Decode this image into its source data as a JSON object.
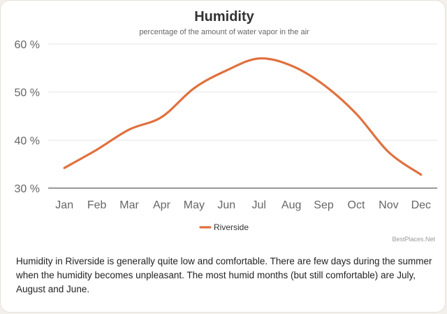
{
  "page": {
    "description": "Humidity in Riverside is generally quite low and comfortable. There are few days during the summer when the humidity becomes unpleasant. The most humid months (but still comfortable) are July, August and June.",
    "credit": "BestPlaces.Net"
  },
  "chart_data": {
    "type": "line",
    "title": "Humidity",
    "subtitle": "percentage of the amount of water vapor in the air",
    "xlabel": "",
    "ylabel": "",
    "categories": [
      "Jan",
      "Feb",
      "Mar",
      "Apr",
      "May",
      "Jun",
      "Jul",
      "Aug",
      "Sep",
      "Oct",
      "Nov",
      "Dec"
    ],
    "series": [
      {
        "name": "Riverside",
        "values": [
          34.2,
          38.0,
          42.2,
          44.8,
          50.8,
          54.5,
          57.0,
          55.5,
          51.5,
          45.5,
          37.5,
          32.8
        ],
        "color": "#e0713f"
      }
    ],
    "ylim": [
      30,
      60
    ],
    "yticks": [
      30,
      40,
      50,
      60
    ],
    "ytick_labels": [
      "30 %",
      "40 %",
      "50 %",
      "60 %"
    ],
    "grid": true,
    "legend": "bottom-center"
  }
}
